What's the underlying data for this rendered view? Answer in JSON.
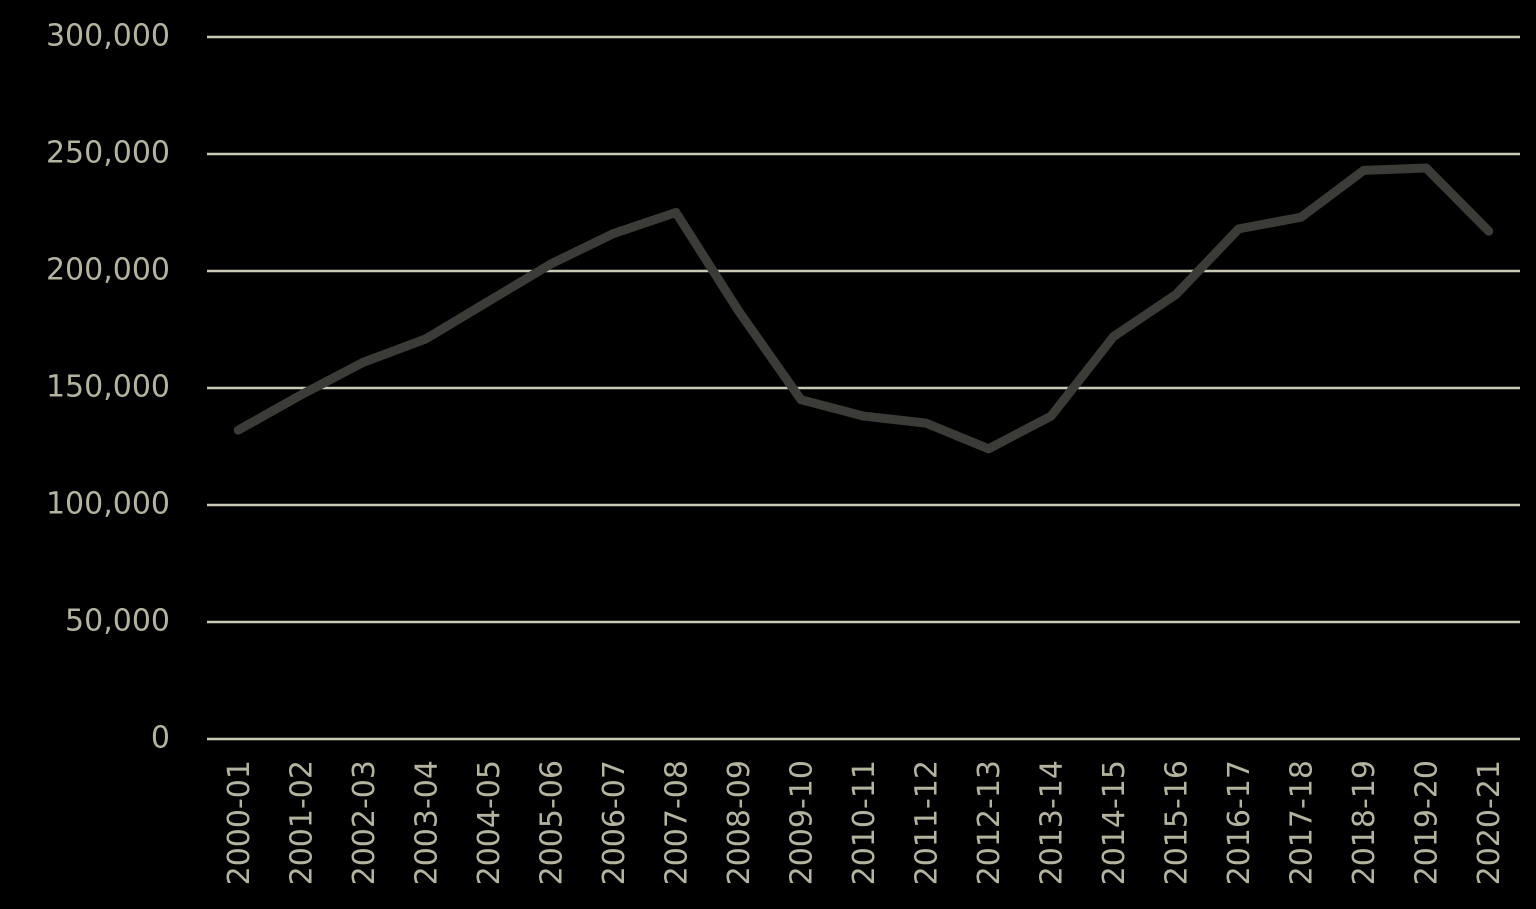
{
  "chart_data": {
    "type": "line",
    "categories": [
      "2000-01",
      "2001-02",
      "2002-03",
      "2003-04",
      "2004-05",
      "2005-06",
      "2006-07",
      "2007-08",
      "2008-09",
      "2009-10",
      "2010-11",
      "2011-12",
      "2012-13",
      "2013-14",
      "2014-15",
      "2015-16",
      "2016-17",
      "2017-18",
      "2018-19",
      "2019-20",
      "2020-21"
    ],
    "values": [
      132000,
      147000,
      161000,
      171000,
      187000,
      203000,
      216000,
      225000,
      183000,
      145000,
      138000,
      135000,
      124000,
      138000,
      172000,
      190000,
      218000,
      223000,
      243000,
      244000,
      217000
    ],
    "color": "#3b3b37",
    "ylim": [
      0,
      300000
    ],
    "yticks": [
      0,
      {
        "value": 50000,
        "label": "50,000"
      },
      {
        "value": 100000,
        "label": "100,000"
      },
      {
        "value": 150000,
        "label": "150,000"
      },
      {
        "value": 200000,
        "label": "200,000"
      },
      {
        "value": 250000,
        "label": "250,000"
      },
      {
        "value": 300000,
        "label": "300,000"
      }
    ],
    "grid": true
  }
}
